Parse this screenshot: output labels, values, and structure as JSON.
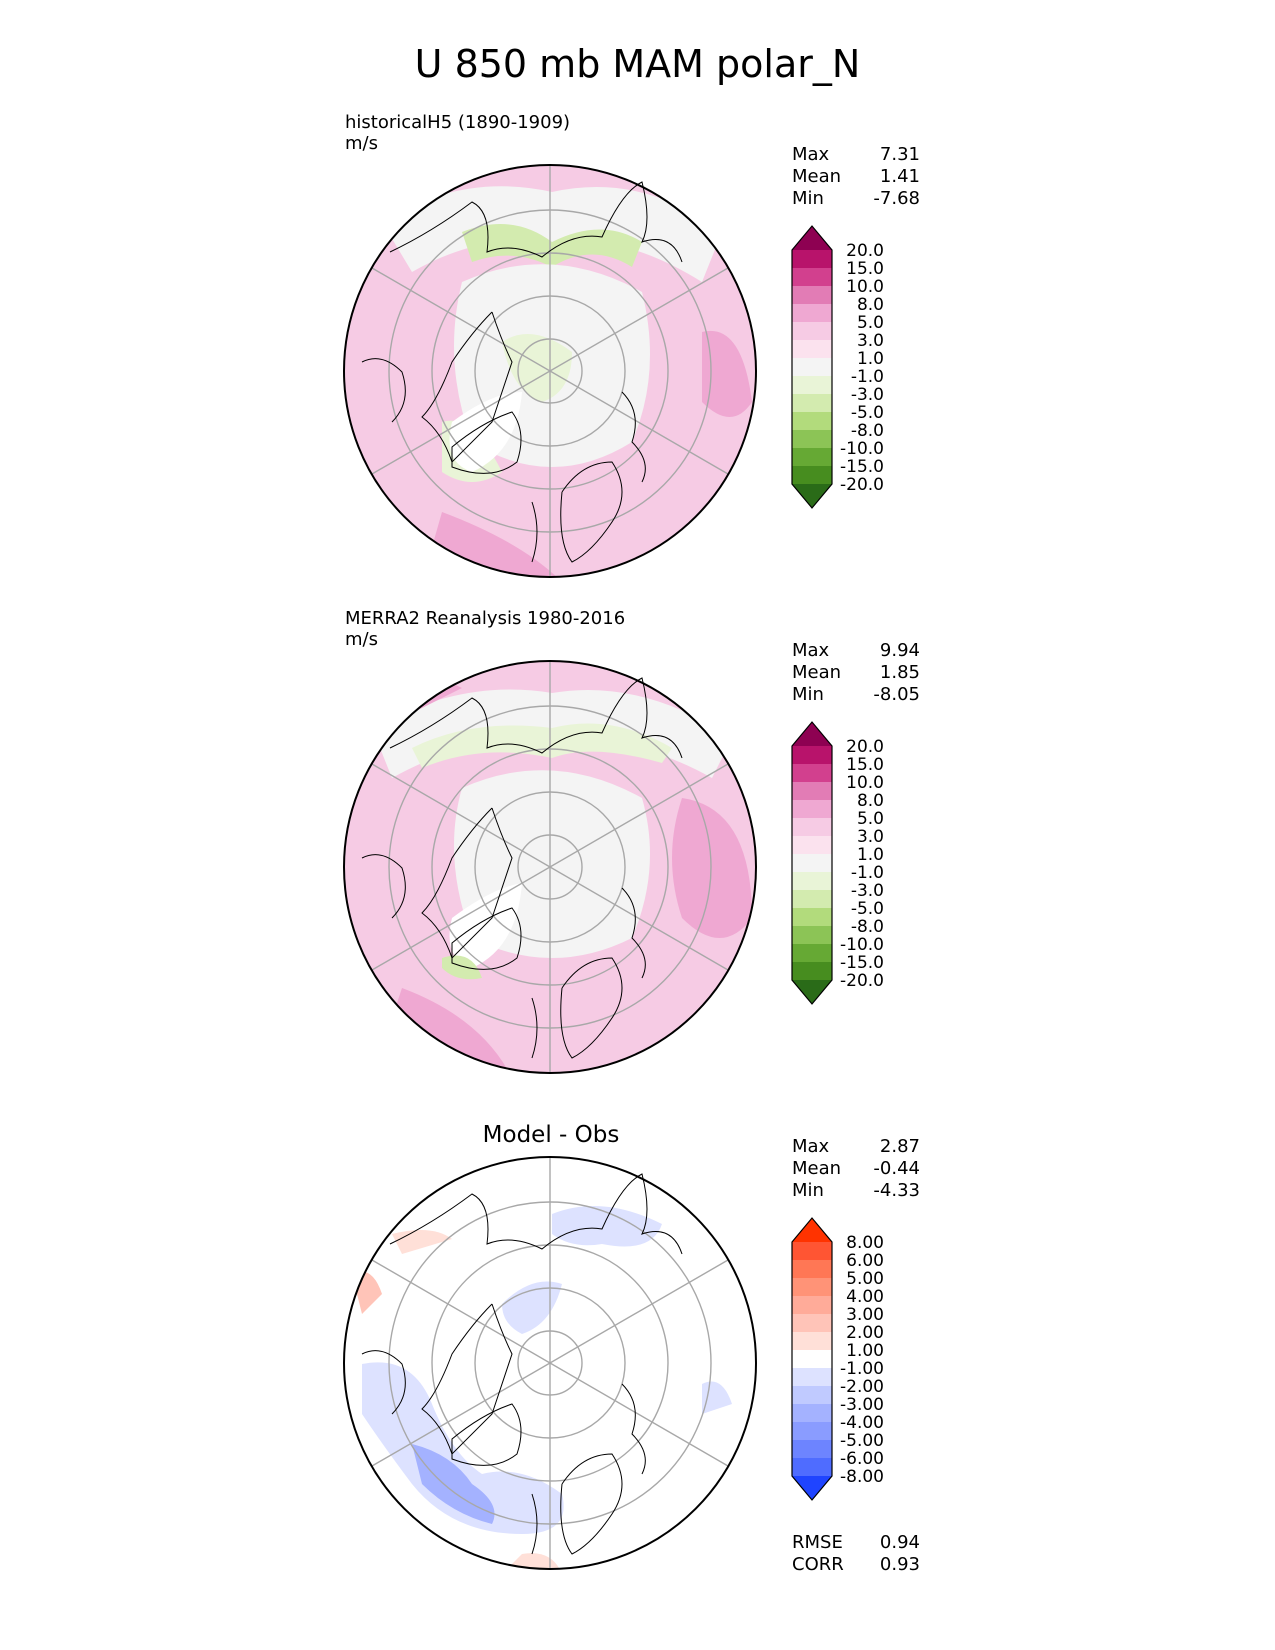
{
  "title": "U 850 mb MAM polar_N",
  "panels": [
    {
      "id": "model",
      "title": "historicalH5 (1890-1909)",
      "units": "m/s",
      "stats": [
        {
          "label": "Max",
          "value": "7.31"
        },
        {
          "label": "Mean",
          "value": "1.41"
        },
        {
          "label": "Min",
          "value": "-7.68"
        }
      ],
      "colorbar": {
        "labels": [
          "20.0",
          "15.0",
          "10.0",
          "8.0",
          "5.0",
          "3.0",
          "1.0",
          "-1.0",
          "-3.0",
          "-5.0",
          "-8.0",
          "-10.0",
          "-15.0",
          "-20.0"
        ],
        "colors": [
          "#8e0152",
          "#b8136b",
          "#d2408e",
          "#e27cb5",
          "#efa8d2",
          "#f6cbe4",
          "#fbe2ee",
          "#f4f4f4",
          "#e9f4d7",
          "#d3ebaf",
          "#b2db7c",
          "#8cc456",
          "#66a934",
          "#478d1f",
          "#2a6b18"
        ]
      }
    },
    {
      "id": "obs",
      "title": "MERRA2 Reanalysis 1980-2016",
      "units": "m/s",
      "stats": [
        {
          "label": "Max",
          "value": "9.94"
        },
        {
          "label": "Mean",
          "value": "1.85"
        },
        {
          "label": "Min",
          "value": "-8.05"
        }
      ],
      "colorbar": {
        "labels": [
          "20.0",
          "15.0",
          "10.0",
          "8.0",
          "5.0",
          "3.0",
          "1.0",
          "-1.0",
          "-3.0",
          "-5.0",
          "-8.0",
          "-10.0",
          "-15.0",
          "-20.0"
        ],
        "colors": [
          "#8e0152",
          "#b8136b",
          "#d2408e",
          "#e27cb5",
          "#efa8d2",
          "#f6cbe4",
          "#fbe2ee",
          "#f4f4f4",
          "#e9f4d7",
          "#d3ebaf",
          "#b2db7c",
          "#8cc456",
          "#66a934",
          "#478d1f",
          "#2a6b18"
        ]
      }
    },
    {
      "id": "diff",
      "title": "Model - Obs",
      "units": "",
      "stats": [
        {
          "label": "Max",
          "value": "2.87"
        },
        {
          "label": "Mean",
          "value": "-0.44"
        },
        {
          "label": "Min",
          "value": "-4.33"
        }
      ],
      "extra_stats": [
        {
          "label": "RMSE",
          "value": "0.94"
        },
        {
          "label": "CORR",
          "value": "0.93"
        }
      ],
      "colorbar": {
        "labels": [
          "8.00",
          "6.00",
          "5.00",
          "4.00",
          "3.00",
          "2.00",
          "1.00",
          "-1.00",
          "-2.00",
          "-3.00",
          "-4.00",
          "-5.00",
          "-6.00",
          "-8.00"
        ],
        "colors": [
          "#ff3300",
          "#ff5533",
          "#ff7755",
          "#ff9377",
          "#ffab99",
          "#ffc4b8",
          "#ffe0d8",
          "#ffffff",
          "#dde2ff",
          "#c0caff",
          "#a4b2ff",
          "#8a9cff",
          "#6d84ff",
          "#4f6cff",
          "#1f44ff"
        ]
      }
    }
  ]
}
